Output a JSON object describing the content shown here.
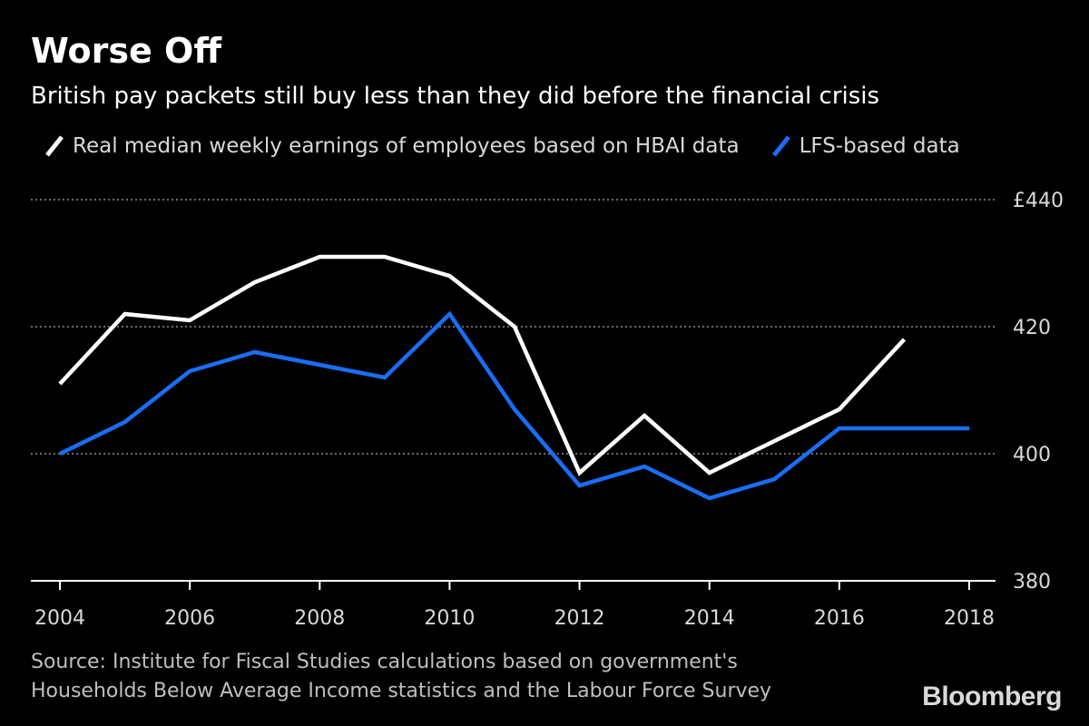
{
  "title": "Worse Off",
  "subtitle": "British pay packets still buy less than they did before the financial crisis",
  "source": {
    "line1": "Source: Institute for Fiscal Studies calculations based on government's",
    "line2": "Households Below Average Income statistics and the Labour Force Survey"
  },
  "brand": "Bloomberg",
  "colors": {
    "background": "#000000",
    "series_hbai": "#ffffff",
    "series_lfs": "#1a6ef5",
    "grid": "#8c8c8c",
    "axis": "#ffffff",
    "tick_text": "#d9d9d9"
  },
  "chart_data": {
    "type": "line",
    "title": "Worse Off",
    "subtitle": "British pay packets still buy less than they did before the financial crisis",
    "xlabel": "",
    "ylabel": "",
    "xlim": [
      2004,
      2018
    ],
    "ylim": [
      380,
      440
    ],
    "x_ticks": [
      "2004",
      "2006",
      "2008",
      "2010",
      "2012",
      "2014",
      "2016",
      "2018"
    ],
    "y_ticks": [
      "£440",
      "420",
      "400",
      "380"
    ],
    "grid": "horizontal dotted",
    "y_axis_position": "right",
    "legend_position": "top-left",
    "series": [
      {
        "name": "Real median weekly earnings of employees based on HBAI data",
        "color": "#ffffff",
        "x": [
          2004,
          2005,
          2006,
          2007,
          2008,
          2009,
          2010,
          2011,
          2012,
          2013,
          2014,
          2015,
          2016,
          2017
        ],
        "values": [
          411,
          422,
          421,
          427,
          431,
          431,
          428,
          420,
          397,
          406,
          397,
          402,
          407,
          418
        ]
      },
      {
        "name": "LFS-based data",
        "color": "#1a6ef5",
        "x": [
          2004,
          2005,
          2006,
          2007,
          2008,
          2009,
          2010,
          2011,
          2012,
          2013,
          2014,
          2015,
          2016,
          2017,
          2018
        ],
        "values": [
          400,
          405,
          413,
          416,
          414,
          412,
          422,
          407,
          395,
          398,
          393,
          396,
          404,
          404,
          404
        ]
      }
    ]
  }
}
